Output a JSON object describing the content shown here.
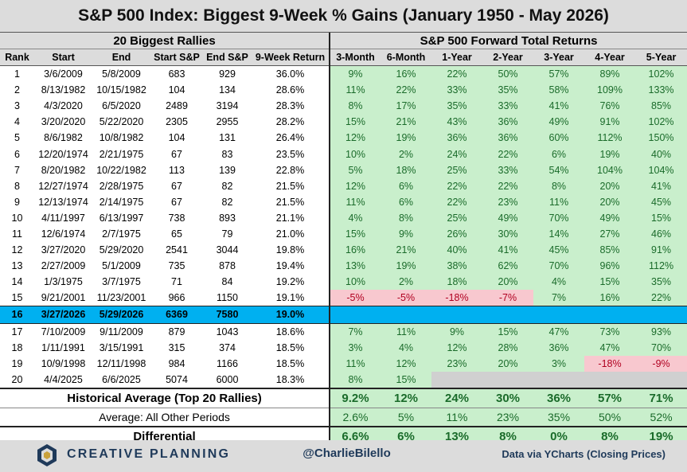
{
  "title": "S&P 500 Index: Biggest 9-Week % Gains (January 1950 - May 2026)",
  "group_left": "20 Biggest Rallies",
  "group_right": "S&P 500 Forward Total Returns",
  "columns": [
    "Rank",
    "Start",
    "End",
    "Start S&P",
    "End S&P",
    "9-Week Return",
    "3-Month",
    "6-Month",
    "1-Year",
    "2-Year",
    "3-Year",
    "4-Year",
    "5-Year"
  ],
  "rows": [
    {
      "rank": "1",
      "start": "3/6/2009",
      "end": "5/8/2009",
      "start_sp": "683",
      "end_sp": "929",
      "ret9": "36.0%",
      "fwd": [
        "9%",
        "16%",
        "22%",
        "50%",
        "57%",
        "89%",
        "102%"
      ]
    },
    {
      "rank": "2",
      "start": "8/13/1982",
      "end": "10/15/1982",
      "start_sp": "104",
      "end_sp": "134",
      "ret9": "28.6%",
      "fwd": [
        "11%",
        "22%",
        "33%",
        "35%",
        "58%",
        "109%",
        "133%"
      ]
    },
    {
      "rank": "3",
      "start": "4/3/2020",
      "end": "6/5/2020",
      "start_sp": "2489",
      "end_sp": "3194",
      "ret9": "28.3%",
      "fwd": [
        "8%",
        "17%",
        "35%",
        "33%",
        "41%",
        "76%",
        "85%"
      ]
    },
    {
      "rank": "4",
      "start": "3/20/2020",
      "end": "5/22/2020",
      "start_sp": "2305",
      "end_sp": "2955",
      "ret9": "28.2%",
      "fwd": [
        "15%",
        "21%",
        "43%",
        "36%",
        "49%",
        "91%",
        "102%"
      ]
    },
    {
      "rank": "5",
      "start": "8/6/1982",
      "end": "10/8/1982",
      "start_sp": "104",
      "end_sp": "131",
      "ret9": "26.4%",
      "fwd": [
        "12%",
        "19%",
        "36%",
        "36%",
        "60%",
        "112%",
        "150%"
      ]
    },
    {
      "rank": "6",
      "start": "12/20/1974",
      "end": "2/21/1975",
      "start_sp": "67",
      "end_sp": "83",
      "ret9": "23.5%",
      "fwd": [
        "10%",
        "2%",
        "24%",
        "22%",
        "6%",
        "19%",
        "40%"
      ]
    },
    {
      "rank": "7",
      "start": "8/20/1982",
      "end": "10/22/1982",
      "start_sp": "113",
      "end_sp": "139",
      "ret9": "22.8%",
      "fwd": [
        "5%",
        "18%",
        "25%",
        "33%",
        "54%",
        "104%",
        "104%"
      ]
    },
    {
      "rank": "8",
      "start": "12/27/1974",
      "end": "2/28/1975",
      "start_sp": "67",
      "end_sp": "82",
      "ret9": "21.5%",
      "fwd": [
        "12%",
        "6%",
        "22%",
        "22%",
        "8%",
        "20%",
        "41%"
      ]
    },
    {
      "rank": "9",
      "start": "12/13/1974",
      "end": "2/14/1975",
      "start_sp": "67",
      "end_sp": "82",
      "ret9": "21.5%",
      "fwd": [
        "11%",
        "6%",
        "22%",
        "23%",
        "11%",
        "20%",
        "45%"
      ]
    },
    {
      "rank": "10",
      "start": "4/11/1997",
      "end": "6/13/1997",
      "start_sp": "738",
      "end_sp": "893",
      "ret9": "21.1%",
      "fwd": [
        "4%",
        "8%",
        "25%",
        "49%",
        "70%",
        "49%",
        "15%"
      ]
    },
    {
      "rank": "11",
      "start": "12/6/1974",
      "end": "2/7/1975",
      "start_sp": "65",
      "end_sp": "79",
      "ret9": "21.0%",
      "fwd": [
        "15%",
        "9%",
        "26%",
        "30%",
        "14%",
        "27%",
        "46%"
      ]
    },
    {
      "rank": "12",
      "start": "3/27/2020",
      "end": "5/29/2020",
      "start_sp": "2541",
      "end_sp": "3044",
      "ret9": "19.8%",
      "fwd": [
        "16%",
        "21%",
        "40%",
        "41%",
        "45%",
        "85%",
        "91%"
      ]
    },
    {
      "rank": "13",
      "start": "2/27/2009",
      "end": "5/1/2009",
      "start_sp": "735",
      "end_sp": "878",
      "ret9": "19.4%",
      "fwd": [
        "13%",
        "19%",
        "38%",
        "62%",
        "70%",
        "96%",
        "112%"
      ]
    },
    {
      "rank": "14",
      "start": "1/3/1975",
      "end": "3/7/1975",
      "start_sp": "71",
      "end_sp": "84",
      "ret9": "19.2%",
      "fwd": [
        "10%",
        "2%",
        "18%",
        "20%",
        "4%",
        "15%",
        "35%"
      ]
    },
    {
      "rank": "15",
      "start": "9/21/2001",
      "end": "11/23/2001",
      "start_sp": "966",
      "end_sp": "1150",
      "ret9": "19.1%",
      "fwd": [
        "-5%",
        "-5%",
        "-18%",
        "-7%",
        "7%",
        "16%",
        "22%"
      ]
    },
    {
      "rank": "16",
      "start": "3/27/2026",
      "end": "5/29/2026",
      "start_sp": "6369",
      "end_sp": "7580",
      "ret9": "19.0%",
      "fwd": [
        "",
        "",
        "",
        "",
        "",
        "",
        ""
      ],
      "current": true
    },
    {
      "rank": "17",
      "start": "7/10/2009",
      "end": "9/11/2009",
      "start_sp": "879",
      "end_sp": "1043",
      "ret9": "18.6%",
      "fwd": [
        "7%",
        "11%",
        "9%",
        "15%",
        "47%",
        "73%",
        "93%"
      ]
    },
    {
      "rank": "18",
      "start": "1/11/1991",
      "end": "3/15/1991",
      "start_sp": "315",
      "end_sp": "374",
      "ret9": "18.5%",
      "fwd": [
        "3%",
        "4%",
        "12%",
        "28%",
        "36%",
        "47%",
        "70%"
      ]
    },
    {
      "rank": "19",
      "start": "10/9/1998",
      "end": "12/11/1998",
      "start_sp": "984",
      "end_sp": "1166",
      "ret9": "18.5%",
      "fwd": [
        "11%",
        "12%",
        "23%",
        "20%",
        "3%",
        "-18%",
        "-9%"
      ]
    },
    {
      "rank": "20",
      "start": "4/4/2025",
      "end": "6/6/2025",
      "start_sp": "5074",
      "end_sp": "6000",
      "ret9": "18.3%",
      "fwd": [
        "8%",
        "15%",
        "",
        "",
        "",
        "",
        ""
      ]
    }
  ],
  "summary": {
    "hist_avg": {
      "label": "Historical Average (Top 20 Rallies)",
      "values": [
        "9.2%",
        "12%",
        "24%",
        "30%",
        "36%",
        "57%",
        "71%"
      ]
    },
    "other_avg": {
      "label": "Average: All Other Periods",
      "values": [
        "2.6%",
        "5%",
        "11%",
        "23%",
        "35%",
        "50%",
        "52%"
      ]
    },
    "differential": {
      "label": "Differential",
      "values": [
        "6.6%",
        "6%",
        "13%",
        "8%",
        "0%",
        "8%",
        "19%"
      ]
    }
  },
  "footer": {
    "brand": "CREATIVE PLANNING",
    "handle": "@CharlieBilello",
    "source": "Data via YCharts (Closing Prices)"
  },
  "colors": {
    "positive_fill": "#c9efcc",
    "negative_fill": "#f8c8cf",
    "highlight": "#00b0f0",
    "header_gray": "#dcdcdc",
    "brand_navy": "#1f3a5a"
  },
  "chart_data": {
    "type": "table",
    "title": "S&P 500 Index: Biggest 9-Week % Gains (January 1950 - May 2026)",
    "columns": [
      "Rank",
      "Start",
      "End",
      "Start S&P",
      "End S&P",
      "9-Week Return",
      "3-Month",
      "6-Month",
      "1-Year",
      "2-Year",
      "3-Year",
      "4-Year",
      "5-Year"
    ],
    "highlighted_row_rank": 16
  }
}
